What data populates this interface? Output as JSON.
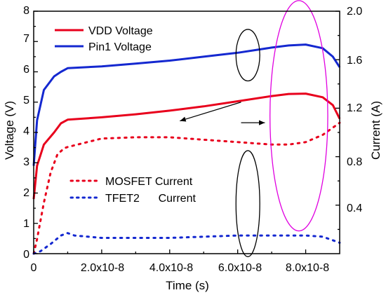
{
  "chart_data": {
    "type": "line",
    "title": "",
    "xlabel": "Time (s)",
    "ylabel_left": "Voltage (V)",
    "ylabel_right": "Current (A)",
    "xlim": [
      0,
      9e-08
    ],
    "ylim_left": [
      0,
      8
    ],
    "ylim_right": [
      0,
      2.0
    ],
    "grid": false,
    "legend_placement": "top-left (voltage), center-left (current)",
    "x_tick_labels": [
      "0",
      "2.0x10-8",
      "4.0x10-8",
      "6.0x10-8",
      "8.0x10-8"
    ],
    "x_tick_values": [
      0,
      2e-08,
      4e-08,
      6e-08,
      8e-08
    ],
    "y_left_tick_labels": [
      "0",
      "1",
      "2",
      "3",
      "4",
      "5",
      "6",
      "7",
      "8"
    ],
    "y_left_tick_values": [
      0,
      1,
      2,
      3,
      4,
      5,
      6,
      7,
      8
    ],
    "y_right_tick_labels": [
      "0.4",
      "0.8",
      "1.2",
      "1.6",
      "2.0"
    ],
    "y_right_tick_values": [
      0.4,
      0.8,
      1.2,
      1.6,
      2.0
    ],
    "series": [
      {
        "name": "VDD Voltage",
        "axis": "left",
        "color": "#e8001c",
        "style": "solid",
        "x": [
          0,
          1e-09,
          3e-09,
          6e-09,
          8e-09,
          1e-08,
          2e-08,
          3e-08,
          4e-08,
          5e-08,
          6e-08,
          7e-08,
          7.5e-08,
          8e-08,
          8.5e-08,
          8.8e-08,
          9e-08
        ],
        "y": [
          1.8,
          2.9,
          3.6,
          4.0,
          4.3,
          4.42,
          4.5,
          4.6,
          4.72,
          4.86,
          5.03,
          5.2,
          5.27,
          5.28,
          5.16,
          4.9,
          4.45
        ]
      },
      {
        "name": "Pin1 Voltage",
        "axis": "left",
        "color": "#1428d0",
        "style": "solid",
        "x": [
          0,
          1e-09,
          3e-09,
          6e-09,
          8e-09,
          1e-08,
          2e-08,
          3e-08,
          4e-08,
          5e-08,
          6e-08,
          7e-08,
          7.5e-08,
          8e-08,
          8.5e-08,
          8.8e-08,
          9e-08
        ],
        "y": [
          2.9,
          4.4,
          5.4,
          5.85,
          6.0,
          6.12,
          6.18,
          6.27,
          6.37,
          6.5,
          6.63,
          6.8,
          6.87,
          6.9,
          6.78,
          6.5,
          6.15
        ]
      },
      {
        "name": "MOSFET Current",
        "axis": "right",
        "color": "#e8001c",
        "style": "dotted",
        "x": [
          0,
          1e-09,
          3e-09,
          5e-09,
          7e-09,
          9e-09,
          1e-08,
          2e-08,
          3e-08,
          4e-08,
          5e-08,
          6e-08,
          7e-08,
          7.5e-08,
          8e-08,
          8.5e-08,
          9e-08
        ],
        "y": [
          0.0,
          0.12,
          0.42,
          0.67,
          0.82,
          0.87,
          0.88,
          0.95,
          0.96,
          0.96,
          0.94,
          0.92,
          0.9,
          0.9,
          0.92,
          0.98,
          1.08
        ]
      },
      {
        "name": "TFET2      Current",
        "axis": "right",
        "color": "#1428d0",
        "style": "dotted",
        "x": [
          0,
          2e-09,
          5e-09,
          8e-09,
          1e-08,
          1.2e-08,
          2e-08,
          3e-08,
          4e-08,
          5e-08,
          6e-08,
          7e-08,
          8e-08,
          8.5e-08,
          9e-08
        ],
        "y": [
          0.0,
          0.02,
          0.08,
          0.15,
          0.17,
          0.15,
          0.13,
          0.13,
          0.13,
          0.14,
          0.15,
          0.15,
          0.15,
          0.14,
          0.09
        ]
      }
    ],
    "annotations": [
      {
        "kind": "ellipse",
        "color": "#000000",
        "cx": 6.3e-08,
        "cy": 6.55,
        "rx": 3.5e-09,
        "ry": 0.85
      },
      {
        "kind": "ellipse",
        "color": "#000000",
        "cx": 6.3e-08,
        "cy": 1.65,
        "rx": 3.5e-09,
        "ry": 1.75
      },
      {
        "kind": "ellipse",
        "color": "#e000e0",
        "cx": 7.8e-08,
        "cy": 4.55,
        "rx": 8.5e-09,
        "ry": 3.8
      },
      {
        "kind": "arrow",
        "color": "#000000",
        "from": [
          6.1e-08,
          5.0
        ],
        "to": [
          4.3e-08,
          4.38
        ]
      },
      {
        "kind": "arrow",
        "color": "#000000",
        "from": [
          6.1e-08,
          4.32
        ],
        "to": [
          6.8e-08,
          4.32
        ]
      }
    ]
  }
}
